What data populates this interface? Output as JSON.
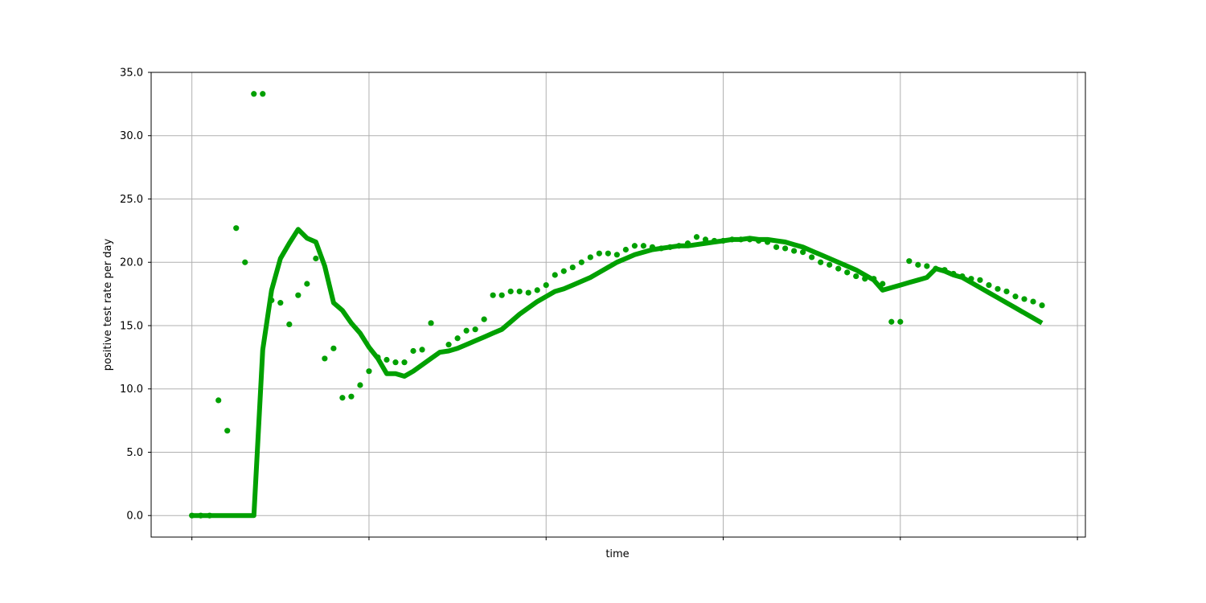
{
  "chart_data": {
    "type": "line",
    "title": "",
    "xlabel": "time",
    "ylabel": "positive test rate per day",
    "ylim": [
      -1.7,
      35.0
    ],
    "yticks": [
      "0.0",
      "5.0",
      "10.0",
      "15.0",
      "20.0",
      "25.0",
      "30.0",
      "35.0"
    ],
    "xticks": [
      0,
      20,
      40,
      60,
      80,
      100
    ],
    "xlim": [
      -4.6,
      100.9
    ],
    "grid": true,
    "color": "#00a000",
    "series": [
      {
        "style": "dots",
        "x": [
          0,
          1,
          2,
          3,
          4,
          5,
          6,
          7,
          8,
          9,
          10,
          11,
          12,
          13,
          14,
          15,
          16,
          17,
          18,
          19,
          20,
          21,
          22,
          23,
          24,
          25,
          26,
          27,
          28,
          29,
          30,
          31,
          32,
          33,
          34,
          35,
          36,
          37,
          38,
          39,
          40,
          41,
          42,
          43,
          44,
          45,
          46,
          47,
          48,
          49,
          50,
          51,
          52,
          53,
          54,
          55,
          56,
          57,
          58,
          59,
          60,
          61,
          62,
          63,
          64,
          65,
          66,
          67,
          68,
          69,
          70,
          71,
          72,
          73,
          74,
          75,
          76,
          77,
          78,
          79,
          80,
          81,
          82,
          83,
          84,
          85,
          86,
          87,
          88,
          89,
          90,
          91,
          92,
          93,
          94,
          95,
          96
        ],
        "values": [
          0.0,
          0.0,
          0.0,
          9.1,
          6.7,
          22.7,
          20.0,
          33.3,
          33.3,
          17.0,
          16.8,
          15.1,
          17.4,
          18.3,
          20.3,
          12.4,
          13.2,
          9.3,
          9.4,
          10.3,
          11.4,
          12.5,
          12.3,
          12.1,
          12.1,
          13.0,
          13.1,
          15.2,
          null,
          13.5,
          14.0,
          14.6,
          14.7,
          15.5,
          17.4,
          17.4,
          17.7,
          17.7,
          17.6,
          17.8,
          18.2,
          19.0,
          19.3,
          19.6,
          20.0,
          20.4,
          20.7,
          20.7,
          20.6,
          21.0,
          21.3,
          21.3,
          21.2,
          21.1,
          21.2,
          21.3,
          21.5,
          22.0,
          21.8,
          21.7,
          21.7,
          21.8,
          21.8,
          21.8,
          21.7,
          21.6,
          21.2,
          21.1,
          20.9,
          20.8,
          20.4,
          20.0,
          19.8,
          19.5,
          19.2,
          18.9,
          18.7,
          18.7,
          18.3,
          15.3,
          15.3,
          20.1,
          19.8,
          19.7,
          19.5,
          19.4,
          19.1,
          18.9,
          18.7,
          18.6,
          18.2,
          17.9,
          17.7,
          17.3,
          17.1,
          16.9,
          16.6
        ]
      },
      {
        "style": "line",
        "x": [
          0,
          7,
          8,
          9,
          10,
          11,
          12,
          13,
          14,
          15,
          16,
          17,
          18,
          19,
          20,
          21,
          22,
          23,
          24,
          25,
          26,
          27,
          28,
          29,
          30,
          31,
          32,
          33,
          34,
          35,
          36,
          37,
          38,
          39,
          40,
          41,
          42,
          43,
          44,
          45,
          46,
          47,
          48,
          49,
          50,
          51,
          52,
          53,
          54,
          55,
          56,
          57,
          58,
          59,
          60,
          61,
          62,
          63,
          64,
          65,
          66,
          67,
          68,
          69,
          70,
          71,
          72,
          73,
          74,
          75,
          76,
          77,
          78,
          79,
          80,
          81,
          82,
          83,
          84,
          85,
          86,
          87,
          88,
          89,
          90,
          91,
          92,
          93,
          94,
          95,
          96
        ],
        "values": [
          0.0,
          0.0,
          13.1,
          17.8,
          20.3,
          21.5,
          22.6,
          21.9,
          21.6,
          19.7,
          16.8,
          16.2,
          15.2,
          14.4,
          13.3,
          12.4,
          11.2,
          11.2,
          11.0,
          11.4,
          11.9,
          12.4,
          12.9,
          13.0,
          13.2,
          13.5,
          13.8,
          14.1,
          14.4,
          14.7,
          15.3,
          15.9,
          16.4,
          16.9,
          17.3,
          17.7,
          17.9,
          18.2,
          18.5,
          18.8,
          19.2,
          19.6,
          20.0,
          20.3,
          20.6,
          20.8,
          21.0,
          21.1,
          21.2,
          21.3,
          21.3,
          21.4,
          21.5,
          21.6,
          21.7,
          21.8,
          21.8,
          21.9,
          21.8,
          21.8,
          21.7,
          21.6,
          21.4,
          21.2,
          20.9,
          20.6,
          20.3,
          20.0,
          19.7,
          19.4,
          19.0,
          18.6,
          17.8,
          18.0,
          18.2,
          18.4,
          18.6,
          18.8,
          19.5,
          19.3,
          19.0,
          18.8,
          18.4,
          18.0,
          17.6,
          17.2,
          16.8,
          16.4,
          16.0,
          15.6,
          15.2
        ]
      }
    ]
  }
}
